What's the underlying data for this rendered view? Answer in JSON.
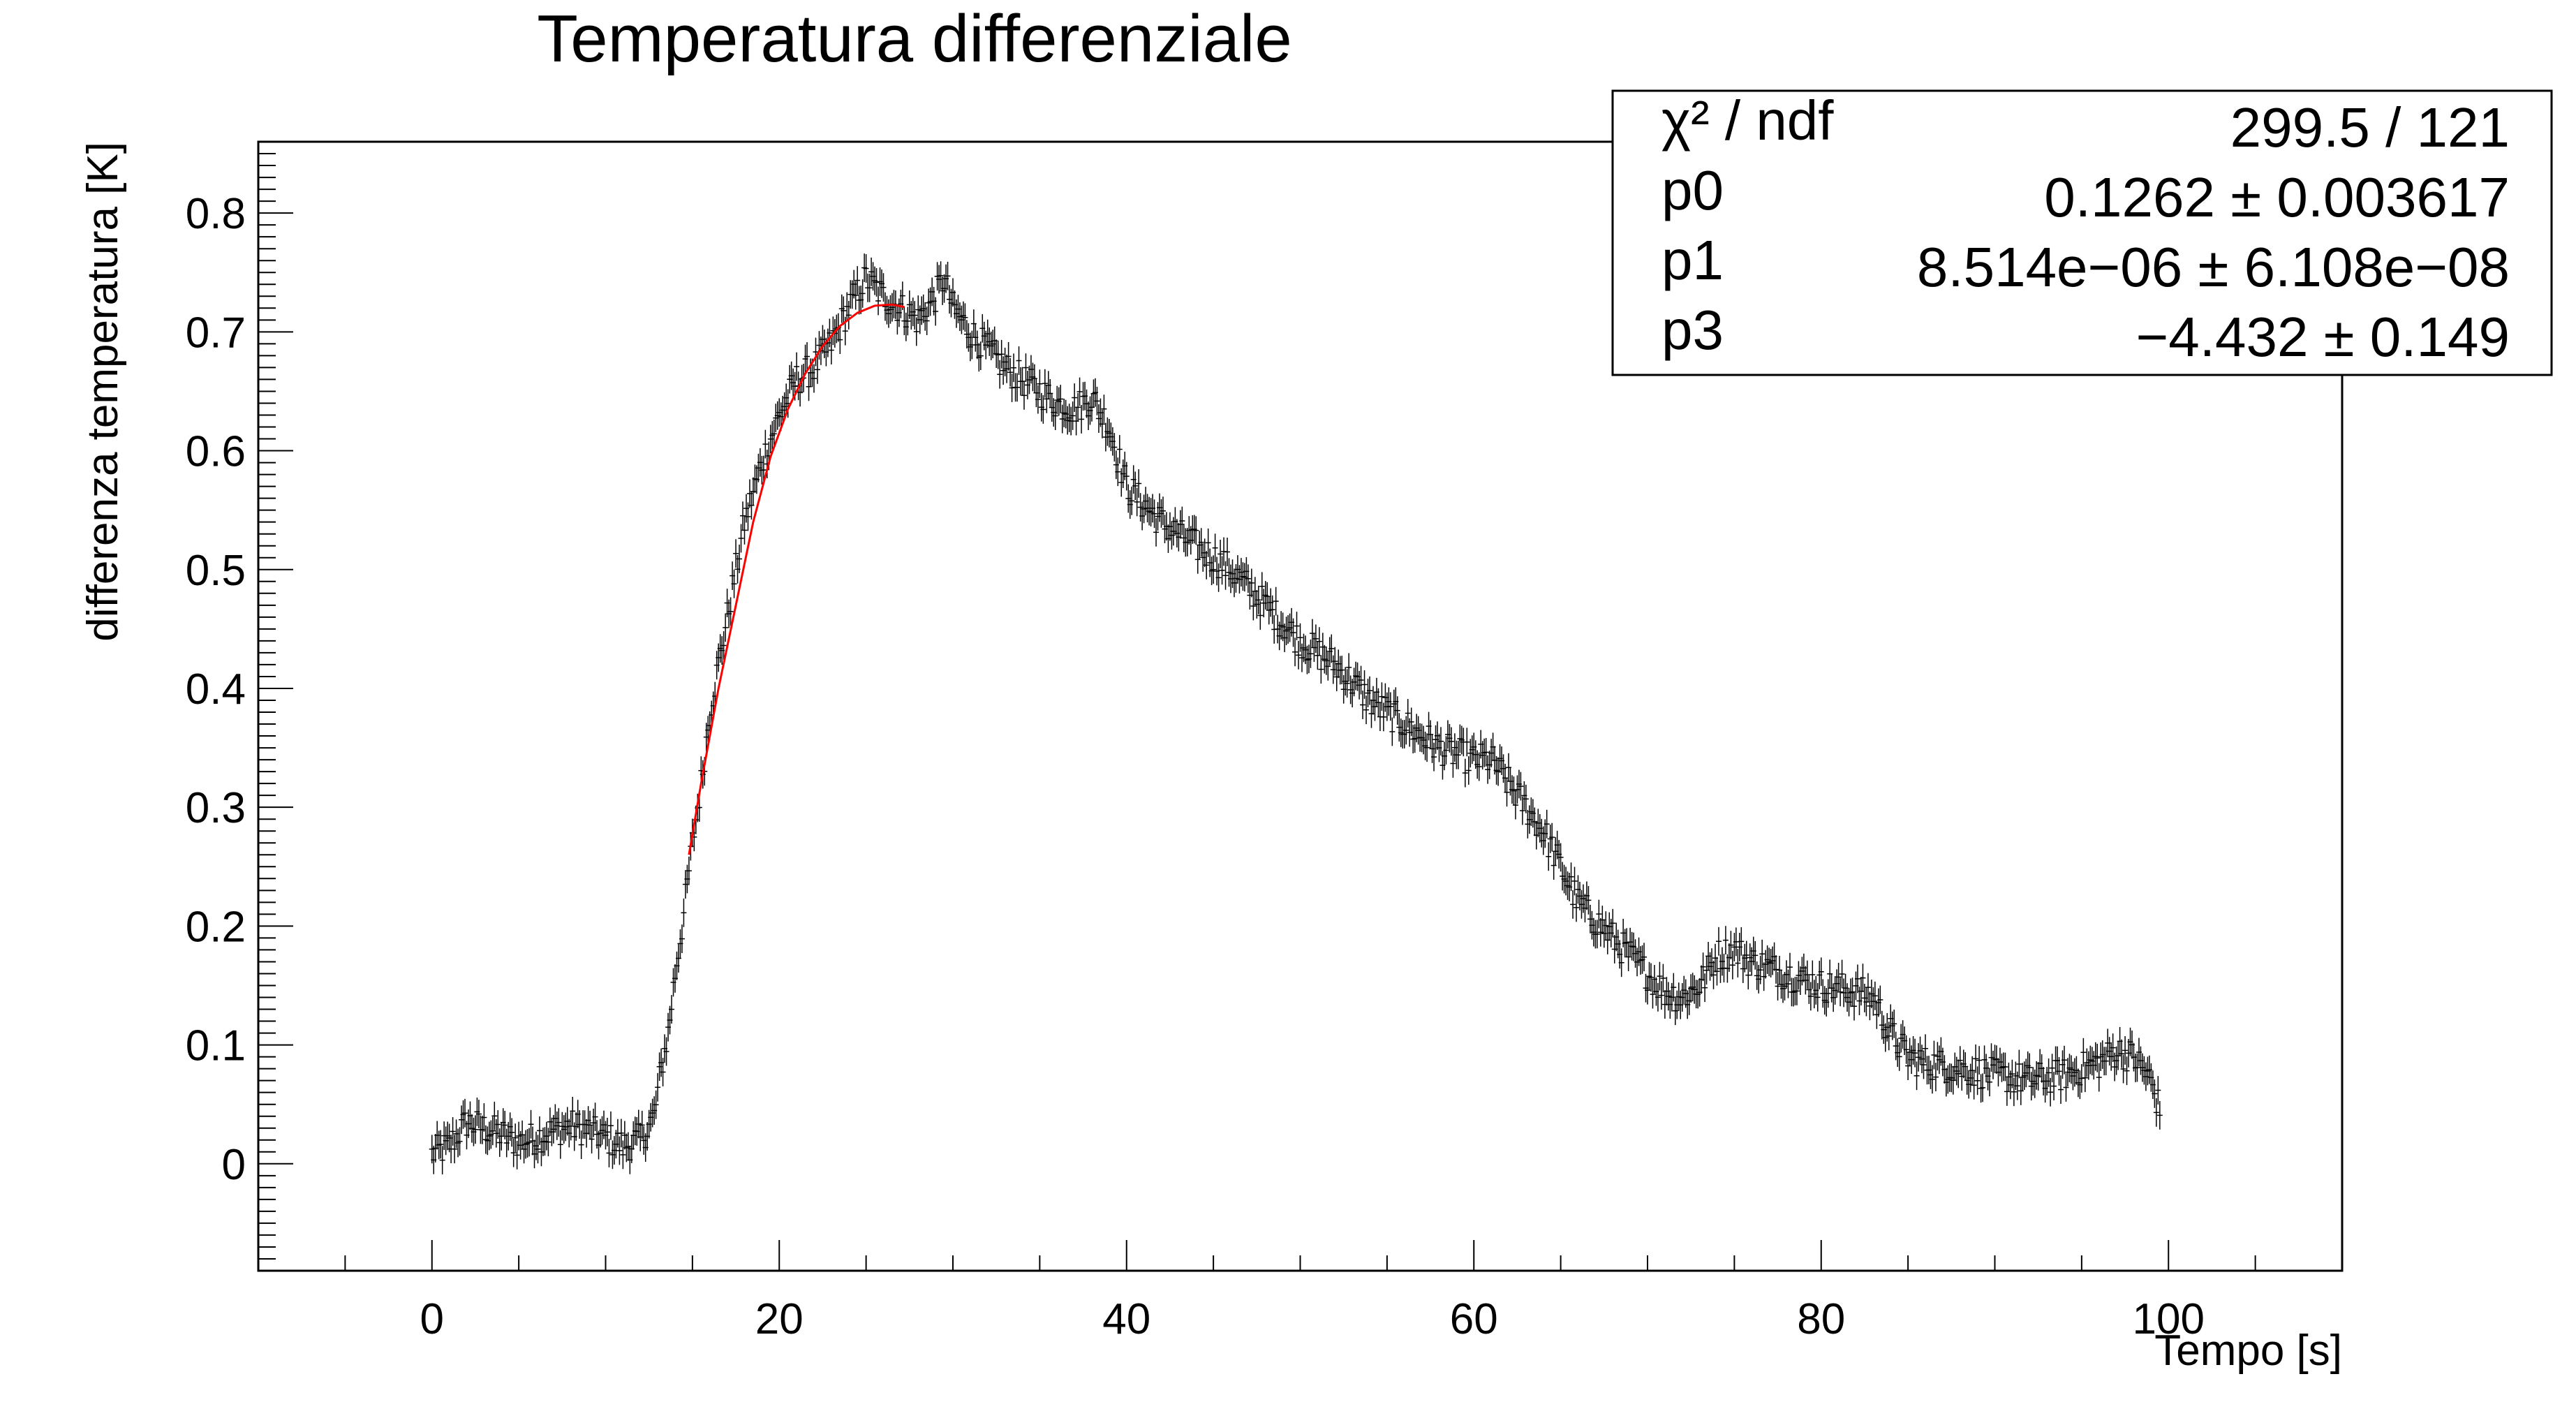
{
  "chart_data": {
    "type": "scatter",
    "title": "Temperatura differenziale",
    "xlabel": "Tempo [s]",
    "ylabel": "differenza temperatura [K]",
    "xlim": [
      -10,
      110
    ],
    "ylim": [
      -0.09,
      0.86
    ],
    "x_ticks": [
      0,
      20,
      40,
      60,
      80,
      100
    ],
    "x_tick_labels": [
      "0",
      "20",
      "40",
      "60",
      "80",
      "100"
    ],
    "y_ticks": [
      0,
      0.1,
      0.2,
      0.3,
      0.4,
      0.5,
      0.6,
      0.7,
      0.8
    ],
    "y_tick_labels": [
      "0",
      "0.1",
      "0.2",
      "0.3",
      "0.4",
      "0.5",
      "0.6",
      "0.7",
      "0.8"
    ],
    "grid": false,
    "data_color": "#000000",
    "fit_color": "#ff0000",
    "error_bar": 0.012,
    "data_trend": {
      "x": [
        0,
        1,
        2,
        3,
        4,
        5,
        6,
        7,
        8,
        9,
        10,
        11,
        12,
        12.8,
        13.2,
        13.6,
        14,
        14.5,
        15,
        15.5,
        16,
        17,
        18,
        19,
        20,
        21,
        22,
        23,
        24,
        25,
        26,
        27,
        28,
        29,
        29.5,
        30,
        31,
        32,
        33,
        34,
        35,
        36,
        37,
        38,
        39,
        40,
        42,
        44,
        46,
        48,
        50,
        52,
        54,
        56,
        58,
        60,
        61,
        62,
        63,
        64,
        65,
        66,
        68,
        70,
        71,
        72,
        73,
        74,
        75,
        76,
        78,
        80,
        82,
        83,
        84,
        85,
        86,
        88,
        90,
        92,
        94,
        95,
        96,
        97,
        98,
        99,
        99.5
      ],
      "y": [
        0.008,
        0.015,
        0.035,
        0.03,
        0.025,
        0.018,
        0.022,
        0.028,
        0.032,
        0.028,
        0.022,
        0.015,
        0.02,
        0.04,
        0.08,
        0.11,
        0.16,
        0.21,
        0.27,
        0.32,
        0.38,
        0.46,
        0.54,
        0.59,
        0.63,
        0.66,
        0.67,
        0.69,
        0.72,
        0.745,
        0.73,
        0.72,
        0.71,
        0.73,
        0.745,
        0.72,
        0.7,
        0.685,
        0.67,
        0.66,
        0.65,
        0.64,
        0.635,
        0.645,
        0.62,
        0.57,
        0.54,
        0.52,
        0.5,
        0.47,
        0.44,
        0.42,
        0.39,
        0.37,
        0.35,
        0.34,
        0.34,
        0.32,
        0.3,
        0.28,
        0.25,
        0.22,
        0.19,
        0.16,
        0.145,
        0.14,
        0.15,
        0.175,
        0.18,
        0.17,
        0.16,
        0.15,
        0.145,
        0.14,
        0.11,
        0.09,
        0.085,
        0.08,
        0.075,
        0.07,
        0.075,
        0.08,
        0.085,
        0.095,
        0.09,
        0.07,
        0.045
      ]
    },
    "fit": {
      "x_range": [
        14.8,
        27.2
      ],
      "x": [
        14.8,
        15.5,
        16.5,
        17.5,
        18.5,
        19.5,
        20.5,
        21.5,
        22.5,
        23.5,
        24.5,
        25.5,
        26.5,
        27.2
      ],
      "y": [
        0.26,
        0.32,
        0.4,
        0.47,
        0.54,
        0.595,
        0.635,
        0.665,
        0.688,
        0.705,
        0.716,
        0.722,
        0.723,
        0.721
      ]
    },
    "stats_box": {
      "rows": [
        {
          "label": "χ² / ndf",
          "value": "299.5 / 121"
        },
        {
          "label": "p0",
          "value": "0.1262 ± 0.003617"
        },
        {
          "label": "p1",
          "value": "8.514e−06 ± 6.108e−08"
        },
        {
          "label": "p3",
          "value": "−4.432 ± 0.149"
        }
      ]
    }
  }
}
